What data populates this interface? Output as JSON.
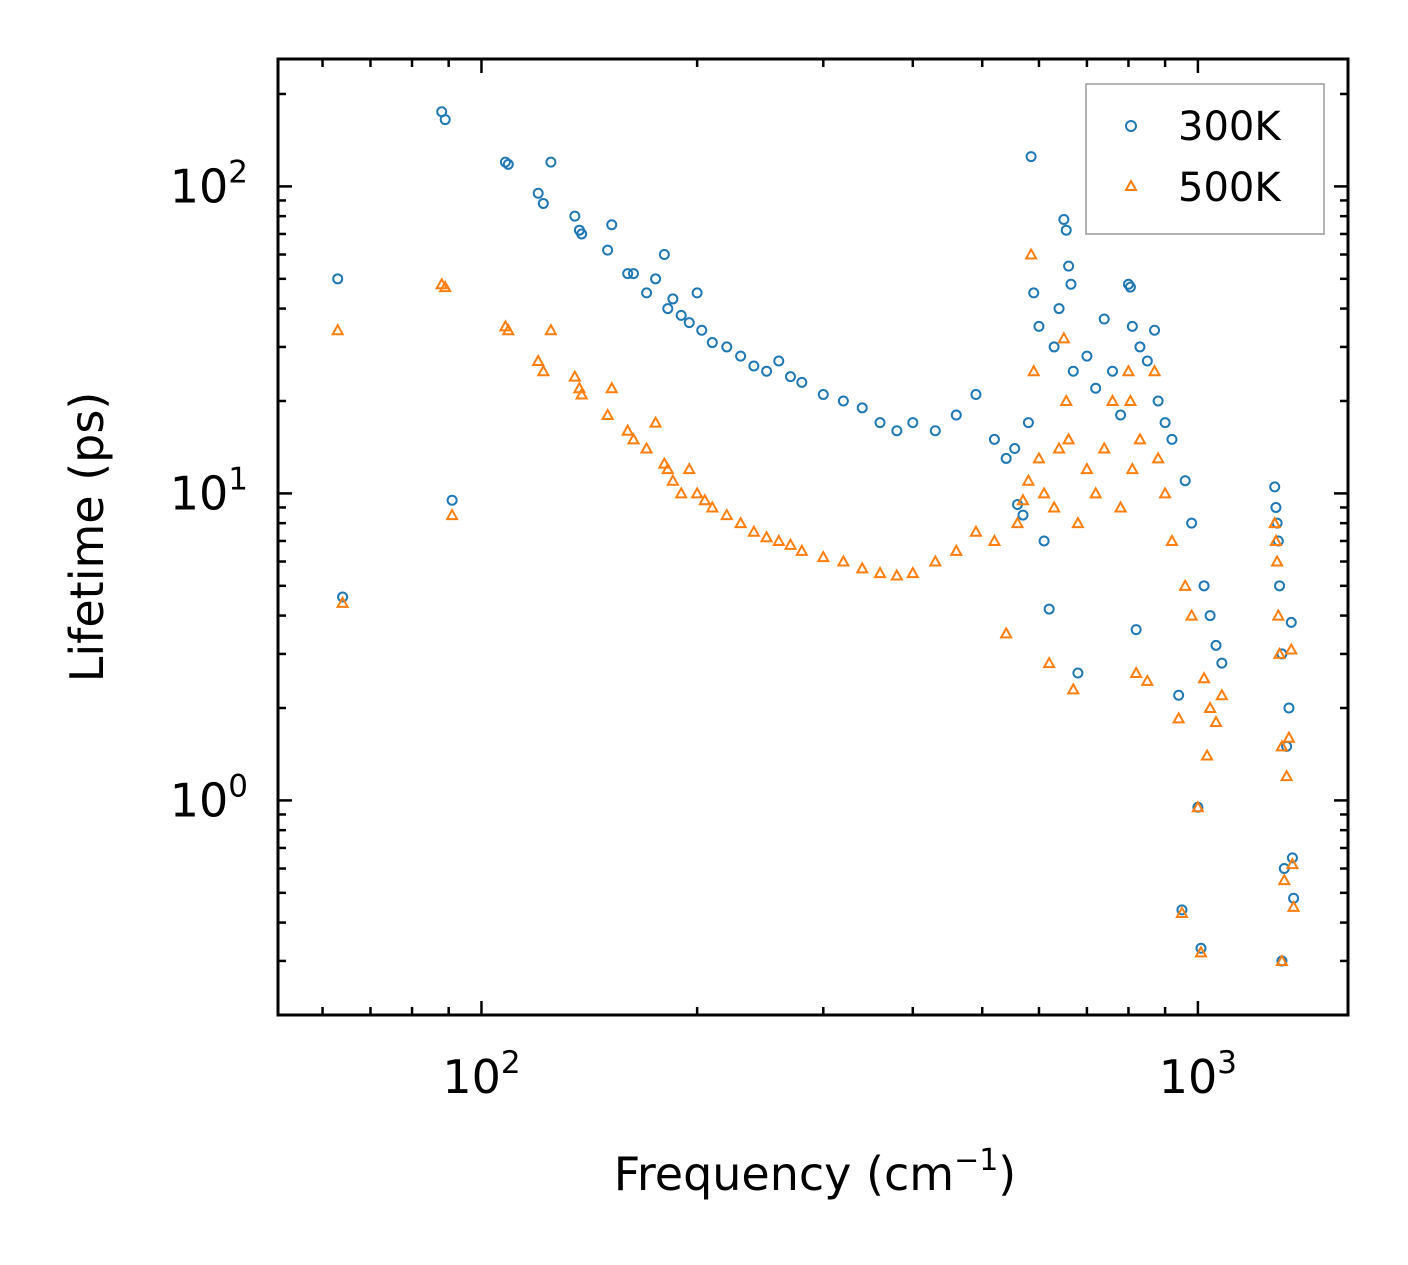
{
  "chart_data": {
    "type": "scatter",
    "title": "",
    "xlabel": "Frequency (cm",
    "xlabel_sup": "−1",
    "xlabel_close": ")",
    "ylabel": "Lifetime (ps)",
    "xscale": "log",
    "yscale": "log",
    "xlim": [
      52,
      1620
    ],
    "ylim": [
      0.2,
      260
    ],
    "x_ticks": [
      {
        "value": 100,
        "base": "10",
        "exp": "2"
      },
      {
        "value": 1000,
        "base": "10",
        "exp": "3"
      }
    ],
    "y_ticks": [
      {
        "value": 1,
        "base": "10",
        "exp": "0"
      },
      {
        "value": 10,
        "base": "10",
        "exp": "1"
      },
      {
        "value": 100,
        "base": "10",
        "exp": "2"
      }
    ],
    "legend_position": "top-right",
    "series": [
      {
        "name": "300K",
        "color": "#1f77b4",
        "marker": "circle",
        "points": [
          [
            63,
            50
          ],
          [
            64,
            4.6
          ],
          [
            88,
            175
          ],
          [
            89,
            165
          ],
          [
            91,
            9.5
          ],
          [
            108,
            120
          ],
          [
            109,
            118
          ],
          [
            120,
            95
          ],
          [
            122,
            88
          ],
          [
            125,
            120
          ],
          [
            135,
            80
          ],
          [
            137,
            72
          ],
          [
            138,
            70
          ],
          [
            150,
            62
          ],
          [
            152,
            75
          ],
          [
            160,
            52
          ],
          [
            163,
            52
          ],
          [
            170,
            45
          ],
          [
            175,
            50
          ],
          [
            180,
            60
          ],
          [
            182,
            40
          ],
          [
            185,
            43
          ],
          [
            190,
            38
          ],
          [
            195,
            36
          ],
          [
            200,
            45
          ],
          [
            203,
            34
          ],
          [
            210,
            31
          ],
          [
            220,
            30
          ],
          [
            230,
            28
          ],
          [
            240,
            26
          ],
          [
            250,
            25
          ],
          [
            260,
            27
          ],
          [
            270,
            24
          ],
          [
            280,
            23
          ],
          [
            300,
            21
          ],
          [
            320,
            20
          ],
          [
            340,
            19
          ],
          [
            360,
            17
          ],
          [
            380,
            16
          ],
          [
            400,
            17
          ],
          [
            430,
            16
          ],
          [
            460,
            18
          ],
          [
            490,
            21
          ],
          [
            520,
            15
          ],
          [
            540,
            13
          ],
          [
            555,
            14
          ],
          [
            560,
            9.2
          ],
          [
            570,
            8.5
          ],
          [
            580,
            17
          ],
          [
            585,
            125
          ],
          [
            590,
            45
          ],
          [
            600,
            35
          ],
          [
            610,
            7
          ],
          [
            620,
            4.2
          ],
          [
            630,
            30
          ],
          [
            640,
            40
          ],
          [
            650,
            78
          ],
          [
            655,
            72
          ],
          [
            660,
            55
          ],
          [
            665,
            48
          ],
          [
            670,
            25
          ],
          [
            680,
            2.6
          ],
          [
            700,
            28
          ],
          [
            720,
            22
          ],
          [
            740,
            37
          ],
          [
            760,
            25
          ],
          [
            780,
            18
          ],
          [
            800,
            48
          ],
          [
            805,
            47
          ],
          [
            810,
            35
          ],
          [
            820,
            3.6
          ],
          [
            830,
            30
          ],
          [
            850,
            27
          ],
          [
            870,
            34
          ],
          [
            880,
            20
          ],
          [
            900,
            17
          ],
          [
            920,
            15
          ],
          [
            940,
            2.2
          ],
          [
            960,
            11
          ],
          [
            980,
            8
          ],
          [
            1000,
            0.95
          ],
          [
            1010,
            0.33
          ],
          [
            1020,
            5
          ],
          [
            1040,
            4
          ],
          [
            1060,
            3.2
          ],
          [
            1080,
            2.8
          ],
          [
            1280,
            10.5
          ],
          [
            1285,
            9
          ],
          [
            1290,
            8
          ],
          [
            1295,
            7
          ],
          [
            1300,
            5
          ],
          [
            1310,
            3
          ],
          [
            1320,
            0.6
          ],
          [
            1330,
            1.5
          ],
          [
            1340,
            2
          ],
          [
            1350,
            3.8
          ],
          [
            1355,
            0.65
          ],
          [
            1360,
            0.48
          ],
          [
            1310,
            0.3
          ],
          [
            950,
            0.44
          ]
        ]
      },
      {
        "name": "500K",
        "color": "#ff7f0e",
        "marker": "triangle",
        "points": [
          [
            63,
            34
          ],
          [
            64,
            4.4
          ],
          [
            88,
            48
          ],
          [
            89,
            47
          ],
          [
            91,
            8.5
          ],
          [
            108,
            35
          ],
          [
            109,
            34
          ],
          [
            120,
            27
          ],
          [
            122,
            25
          ],
          [
            125,
            34
          ],
          [
            135,
            24
          ],
          [
            137,
            22
          ],
          [
            138,
            21
          ],
          [
            150,
            18
          ],
          [
            152,
            22
          ],
          [
            160,
            16
          ],
          [
            163,
            15
          ],
          [
            170,
            14
          ],
          [
            175,
            17
          ],
          [
            180,
            12.5
          ],
          [
            182,
            12
          ],
          [
            185,
            11
          ],
          [
            190,
            10
          ],
          [
            195,
            12
          ],
          [
            200,
            10
          ],
          [
            205,
            9.5
          ],
          [
            210,
            9
          ],
          [
            220,
            8.5
          ],
          [
            230,
            8
          ],
          [
            240,
            7.5
          ],
          [
            250,
            7.2
          ],
          [
            260,
            7
          ],
          [
            270,
            6.8
          ],
          [
            280,
            6.5
          ],
          [
            300,
            6.2
          ],
          [
            320,
            6
          ],
          [
            340,
            5.7
          ],
          [
            360,
            5.5
          ],
          [
            380,
            5.4
          ],
          [
            400,
            5.5
          ],
          [
            430,
            6
          ],
          [
            460,
            6.5
          ],
          [
            490,
            7.5
          ],
          [
            520,
            7
          ],
          [
            540,
            3.5
          ],
          [
            560,
            8
          ],
          [
            570,
            9.5
          ],
          [
            580,
            11
          ],
          [
            585,
            60
          ],
          [
            590,
            25
          ],
          [
            600,
            13
          ],
          [
            610,
            10
          ],
          [
            620,
            2.8
          ],
          [
            630,
            9
          ],
          [
            640,
            14
          ],
          [
            650,
            32
          ],
          [
            655,
            20
          ],
          [
            660,
            15
          ],
          [
            670,
            2.3
          ],
          [
            680,
            8
          ],
          [
            700,
            12
          ],
          [
            720,
            10
          ],
          [
            740,
            14
          ],
          [
            760,
            20
          ],
          [
            780,
            9
          ],
          [
            800,
            25
          ],
          [
            805,
            20
          ],
          [
            810,
            12
          ],
          [
            820,
            2.6
          ],
          [
            830,
            15
          ],
          [
            850,
            2.45
          ],
          [
            870,
            25
          ],
          [
            880,
            13
          ],
          [
            900,
            10
          ],
          [
            920,
            7
          ],
          [
            940,
            1.85
          ],
          [
            960,
            5
          ],
          [
            980,
            4
          ],
          [
            1000,
            0.95
          ],
          [
            1010,
            0.32
          ],
          [
            1020,
            2.5
          ],
          [
            1030,
            1.4
          ],
          [
            1040,
            2
          ],
          [
            1060,
            1.8
          ],
          [
            1080,
            2.2
          ],
          [
            1280,
            8
          ],
          [
            1285,
            7
          ],
          [
            1290,
            6
          ],
          [
            1295,
            4
          ],
          [
            1300,
            3
          ],
          [
            1310,
            1.5
          ],
          [
            1320,
            0.55
          ],
          [
            1330,
            1.2
          ],
          [
            1340,
            1.6
          ],
          [
            1350,
            3.1
          ],
          [
            1355,
            0.62
          ],
          [
            1360,
            0.45
          ],
          [
            1310,
            0.3
          ],
          [
            950,
            0.43
          ]
        ]
      }
    ]
  }
}
